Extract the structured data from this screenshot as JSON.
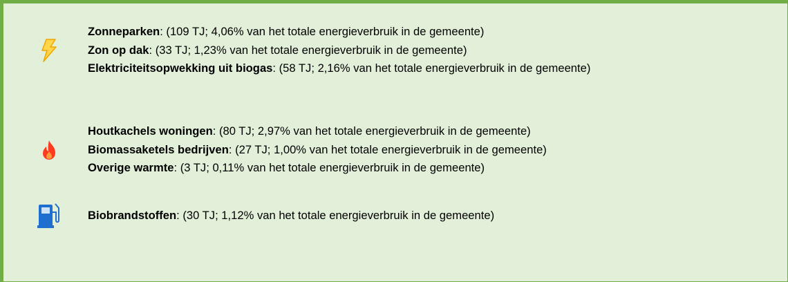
{
  "groups": [
    {
      "items": [
        {
          "name": "Zonneparken",
          "detail": ": (109 TJ; 4,06% van het totale energieverbruik in de gemeente)"
        },
        {
          "name": "Zon op dak",
          "detail": ": (33 TJ; 1,23% van het totale energieverbruik in de gemeente)"
        },
        {
          "name": "Elektriciteitsopwekking uit biogas",
          "detail": ": (58 TJ; 2,16% van het totale energieverbruik in de ge­meente)"
        }
      ]
    },
    {
      "items": [
        {
          "name": "Houtkachels woningen",
          "detail": ": (80 TJ; 2,97% van het totale energieverbruik in de gemeente)"
        },
        {
          "name": "Biomassaketels bedrijven",
          "detail": ": (27 TJ; 1,00% van het totale energieverbruik in de gemeente)"
        },
        {
          "name": "Overige warmte",
          "detail": ": (3 TJ; 0,11% van het totale energieverbruik in de gemeente)"
        }
      ]
    },
    {
      "items": [
        {
          "name": "Biobrandstoffen",
          "detail": ": (30 TJ; 1,12% van het totale energieverbruik in de gemeente)"
        }
      ]
    }
  ]
}
